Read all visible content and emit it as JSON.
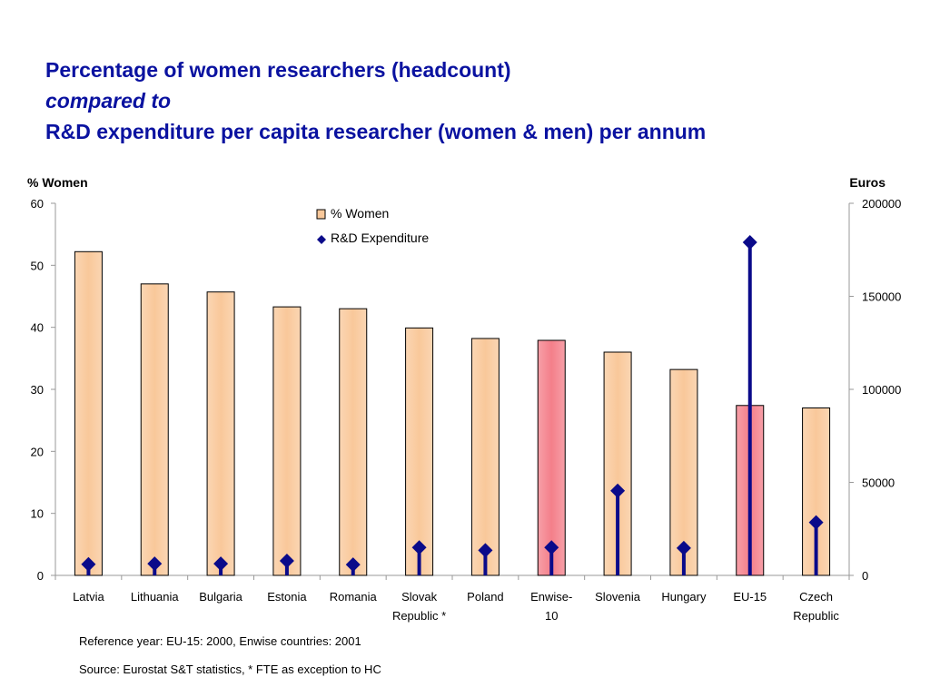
{
  "title": {
    "line1": "Percentage of women researchers (headcount)",
    "line2": "compared to",
    "line3": "R&D expenditure per capita researcher (women & men) per annum"
  },
  "notes": {
    "reference": "Reference year: EU-15: 2000, Enwise countries: 2001",
    "source": "Source: Eurostat S&T statistics, * FTE as exception to HC"
  },
  "colors": {
    "title": "#0a12a0",
    "bar_fill": "#f9c89a",
    "bar_highlight": "#f47f8a",
    "line": "#0a0a8a"
  },
  "chart_data": {
    "type": "bar",
    "categories": [
      [
        "Latvia"
      ],
      [
        "Lithuania"
      ],
      [
        "Bulgaria"
      ],
      [
        "Estonia"
      ],
      [
        "Romania"
      ],
      [
        "Slovak",
        "Republic *"
      ],
      [
        "Poland"
      ],
      [
        "Enwise-",
        "10"
      ],
      [
        "Slovenia"
      ],
      [
        "Hungary"
      ],
      [
        "EU-15"
      ],
      [
        "Czech",
        "Republic"
      ]
    ],
    "highlighted": [
      "Enwise-10",
      "EU-15"
    ],
    "series": [
      {
        "name": "% Women",
        "type": "bar",
        "axis": "left",
        "values": [
          52.2,
          47.0,
          45.7,
          43.3,
          43.0,
          39.9,
          38.2,
          37.9,
          36.0,
          33.2,
          27.4,
          27.0
        ]
      },
      {
        "name": "R&D Expenditure",
        "type": "drop-line-marker",
        "axis": "right",
        "values": [
          6000,
          6300,
          6300,
          7800,
          5800,
          15000,
          13500,
          15000,
          45500,
          14700,
          179000,
          28500
        ]
      }
    ],
    "ylabel_left": "% Women",
    "ylabel_right": "Euros",
    "ylim_left": [
      0,
      60
    ],
    "yticks_left": [
      0,
      10,
      20,
      30,
      40,
      50,
      60
    ],
    "ylim_right": [
      0,
      200000
    ],
    "yticks_right": [
      0,
      50000,
      100000,
      150000,
      200000
    ],
    "legend_position": "top-center",
    "grid": false
  }
}
